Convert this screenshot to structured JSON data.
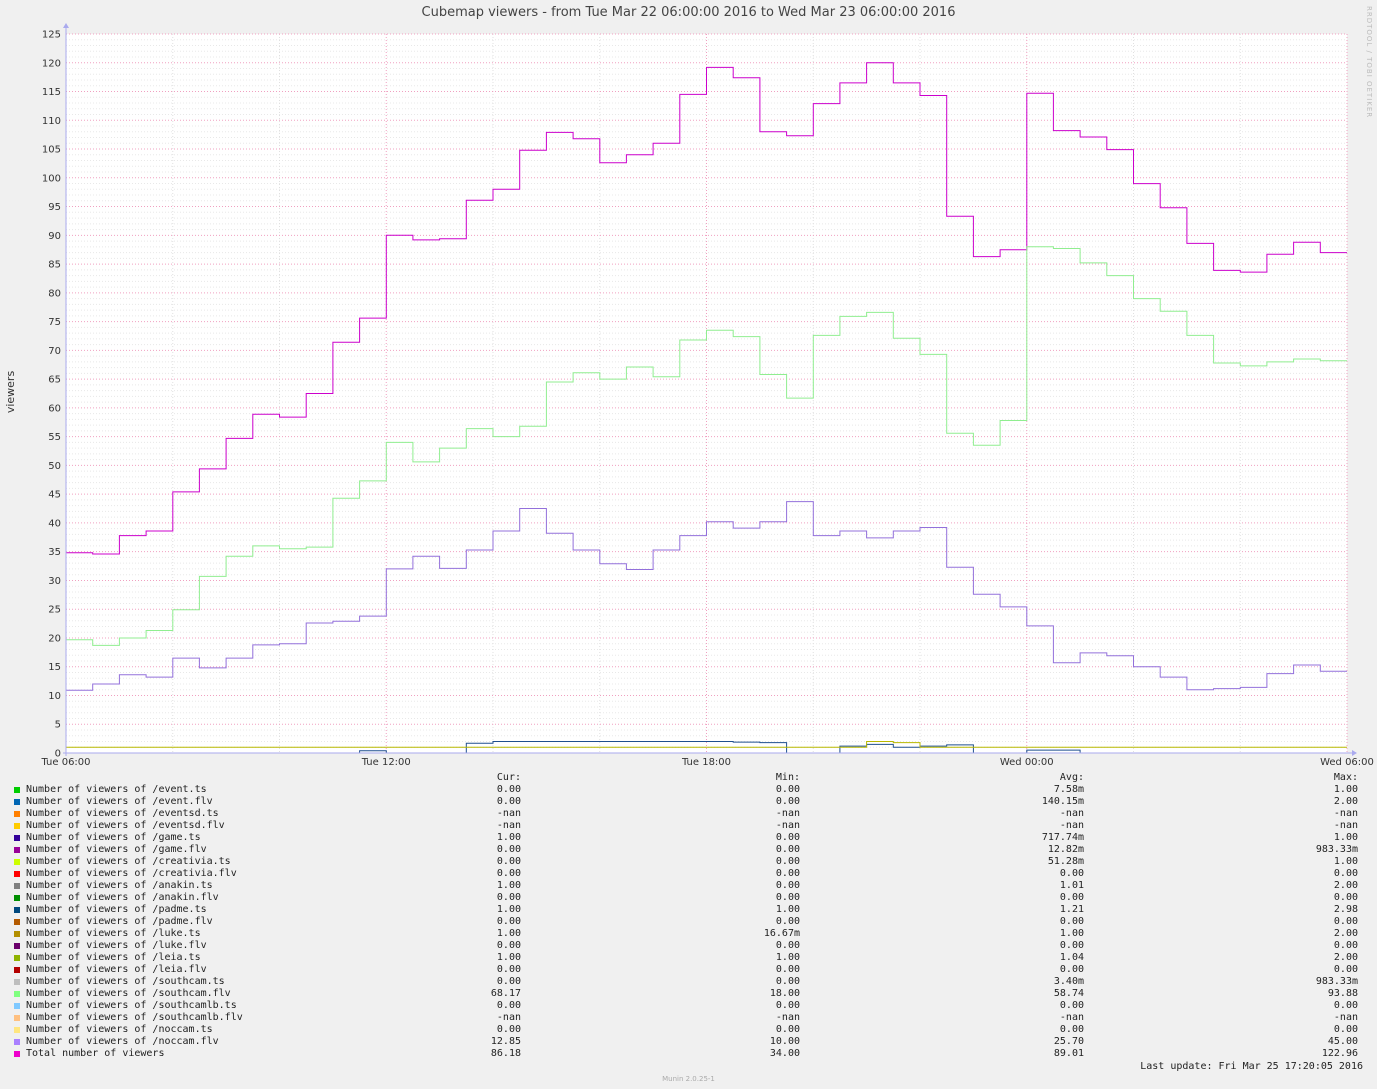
{
  "chart_data": {
    "type": "line",
    "title": "Cubemap viewers - from Tue Mar 22 06:00:00 2016 to Wed Mar 23 06:00:00 2016",
    "ylabel": "viewers",
    "xlabel": "",
    "ylim": [
      0,
      125
    ],
    "yticks": [
      "0",
      "5",
      "10",
      "15",
      "20",
      "25",
      "30",
      "35",
      "40",
      "45",
      "50",
      "55",
      "60",
      "65",
      "70",
      "75",
      "80",
      "85",
      "90",
      "95",
      "100",
      "105",
      "110",
      "115",
      "120",
      "125"
    ],
    "xlim_hours": [
      0,
      24
    ],
    "xticks": [
      {
        "hour": 0,
        "label": "Tue 06:00"
      },
      {
        "hour": 6,
        "label": "Tue 12:00"
      },
      {
        "hour": 12,
        "label": "Tue 18:00"
      },
      {
        "hour": 18,
        "label": "Wed 00:00"
      },
      {
        "hour": 24,
        "label": "Wed 06:00"
      }
    ],
    "grid": true,
    "step_hours": 0.5,
    "series": [
      {
        "name": "Total number of viewers",
        "color": "#cc00cc",
        "values": [
          34.8,
          34.6,
          37.8,
          38.6,
          45.4,
          49.4,
          54.7,
          58.9,
          58.4,
          62.5,
          71.4,
          75.6,
          90.0,
          89.2,
          89.4,
          96.1,
          98.0,
          104.8,
          107.9,
          106.8,
          102.6,
          104.0,
          106.0,
          114.5,
          119.2,
          117.4,
          108.0,
          107.3,
          112.9,
          116.5,
          120.0,
          116.5,
          114.3,
          93.3,
          86.3,
          87.5,
          114.7,
          108.2,
          107.1,
          104.9,
          99.0,
          94.8,
          88.6,
          83.9,
          83.6,
          86.7,
          88.8,
          87.0
        ]
      },
      {
        "name": "Number of viewers of /southcam.flv",
        "color": "#90ee90",
        "values": [
          19.7,
          18.7,
          20.0,
          21.3,
          24.9,
          30.7,
          34.2,
          36.0,
          35.5,
          35.8,
          44.3,
          47.3,
          54.0,
          50.6,
          53.0,
          56.4,
          55.0,
          56.8,
          64.5,
          66.1,
          65.0,
          67.1,
          65.4,
          71.8,
          73.5,
          72.4,
          65.8,
          61.7,
          72.6,
          75.9,
          76.6,
          72.1,
          69.3,
          55.6,
          53.5,
          57.8,
          88.0,
          87.7,
          85.2,
          83.0,
          79.0,
          76.8,
          72.6,
          67.8,
          67.3,
          68.0,
          68.5,
          68.2
        ]
      },
      {
        "name": "Number of viewers of /noccam.flv",
        "color": "#9370db",
        "values": [
          10.9,
          12.0,
          13.6,
          13.2,
          16.5,
          14.8,
          16.5,
          18.8,
          19.0,
          22.6,
          22.9,
          23.8,
          32.0,
          34.2,
          32.1,
          35.3,
          38.6,
          42.5,
          38.2,
          35.3,
          32.9,
          31.9,
          35.3,
          37.8,
          40.2,
          39.1,
          40.2,
          43.7,
          37.8,
          38.6,
          37.4,
          38.6,
          39.2,
          32.3,
          27.6,
          25.4,
          22.1,
          15.7,
          17.4,
          16.9,
          15.0,
          13.2,
          11.0,
          11.2,
          11.4,
          13.8,
          15.3,
          14.2
        ]
      },
      {
        "name": "Number of viewers of /padme.ts",
        "color": "#1f4f8f",
        "values": [
          0,
          0,
          0,
          0,
          0,
          0,
          0,
          0,
          0,
          0,
          0,
          0.4,
          0,
          0,
          0,
          1.7,
          2.0,
          2.0,
          2.0,
          2.0,
          2.0,
          2.0,
          2.0,
          2.0,
          2.0,
          1.9,
          1.8,
          0,
          0,
          1.2,
          1.5,
          1.0,
          1.2,
          1.4,
          0,
          0,
          0.5,
          0.5,
          0,
          0,
          0,
          0,
          0,
          0,
          0,
          0,
          0,
          0
        ]
      },
      {
        "name": "Number of viewers of /luke.ts",
        "color": "#b8b800",
        "values": [
          1,
          1,
          1,
          1,
          1,
          1,
          1,
          1,
          1,
          1,
          1,
          1,
          1,
          1,
          1,
          1,
          1,
          1,
          1,
          1,
          1,
          1,
          1,
          1,
          1,
          1,
          1,
          1,
          1,
          1,
          2.0,
          1.8,
          1,
          1,
          1,
          1,
          1,
          1,
          1,
          1,
          1,
          1,
          1,
          1,
          1,
          1,
          1,
          1
        ]
      }
    ]
  },
  "legend": {
    "headers": {
      "cur": "Cur:",
      "min": "Min:",
      "avg": "Avg:",
      "max": "Max:"
    },
    "rows": [
      {
        "color": "#00cc00",
        "name": "Number of viewers of /event.ts",
        "cur": "0.00",
        "min": "0.00",
        "avg": "7.58m",
        "max": "1.00"
      },
      {
        "color": "#0066b3",
        "name": "Number of viewers of /event.flv",
        "cur": "0.00",
        "min": "0.00",
        "avg": "140.15m",
        "max": "2.00"
      },
      {
        "color": "#ff8000",
        "name": "Number of viewers of /eventsd.ts",
        "cur": "-nan",
        "min": "-nan",
        "avg": "-nan",
        "max": "-nan"
      },
      {
        "color": "#ffcc00",
        "name": "Number of viewers of /eventsd.flv",
        "cur": "-nan",
        "min": "-nan",
        "avg": "-nan",
        "max": "-nan"
      },
      {
        "color": "#330099",
        "name": "Number of viewers of /game.ts",
        "cur": "1.00",
        "min": "0.00",
        "avg": "717.74m",
        "max": "1.00"
      },
      {
        "color": "#990099",
        "name": "Number of viewers of /game.flv",
        "cur": "0.00",
        "min": "0.00",
        "avg": "12.82m",
        "max": "983.33m"
      },
      {
        "color": "#ccff00",
        "name": "Number of viewers of /creativia.ts",
        "cur": "0.00",
        "min": "0.00",
        "avg": "51.28m",
        "max": "1.00"
      },
      {
        "color": "#ff0000",
        "name": "Number of viewers of /creativia.flv",
        "cur": "0.00",
        "min": "0.00",
        "avg": "0.00",
        "max": "0.00"
      },
      {
        "color": "#808080",
        "name": "Number of viewers of /anakin.ts",
        "cur": "1.00",
        "min": "0.00",
        "avg": "1.01",
        "max": "2.00"
      },
      {
        "color": "#008f00",
        "name": "Number of viewers of /anakin.flv",
        "cur": "0.00",
        "min": "0.00",
        "avg": "0.00",
        "max": "0.00"
      },
      {
        "color": "#00487d",
        "name": "Number of viewers of /padme.ts",
        "cur": "1.00",
        "min": "1.00",
        "avg": "1.21",
        "max": "2.98"
      },
      {
        "color": "#b35a00",
        "name": "Number of viewers of /padme.flv",
        "cur": "0.00",
        "min": "0.00",
        "avg": "0.00",
        "max": "0.00"
      },
      {
        "color": "#b38f00",
        "name": "Number of viewers of /luke.ts",
        "cur": "1.00",
        "min": "16.67m",
        "avg": "1.00",
        "max": "2.00"
      },
      {
        "color": "#6b006b",
        "name": "Number of viewers of /luke.flv",
        "cur": "0.00",
        "min": "0.00",
        "avg": "0.00",
        "max": "0.00"
      },
      {
        "color": "#8fb300",
        "name": "Number of viewers of /leia.ts",
        "cur": "1.00",
        "min": "1.00",
        "avg": "1.04",
        "max": "2.00"
      },
      {
        "color": "#b30000",
        "name": "Number of viewers of /leia.flv",
        "cur": "0.00",
        "min": "0.00",
        "avg": "0.00",
        "max": "0.00"
      },
      {
        "color": "#bebebe",
        "name": "Number of viewers of /southcam.ts",
        "cur": "0.00",
        "min": "0.00",
        "avg": "3.40m",
        "max": "983.33m"
      },
      {
        "color": "#80ff80",
        "name": "Number of viewers of /southcam.flv",
        "cur": "68.17",
        "min": "18.00",
        "avg": "58.74",
        "max": "93.88"
      },
      {
        "color": "#80c9ff",
        "name": "Number of viewers of /southcamlb.ts",
        "cur": "0.00",
        "min": "0.00",
        "avg": "0.00",
        "max": "0.00"
      },
      {
        "color": "#ffc080",
        "name": "Number of viewers of /southcamlb.flv",
        "cur": "-nan",
        "min": "-nan",
        "avg": "-nan",
        "max": "-nan"
      },
      {
        "color": "#ffe680",
        "name": "Number of viewers of /noccam.ts",
        "cur": "0.00",
        "min": "0.00",
        "avg": "0.00",
        "max": "0.00"
      },
      {
        "color": "#aa80ff",
        "name": "Number of viewers of /noccam.flv",
        "cur": "12.85",
        "min": "10.00",
        "avg": "25.70",
        "max": "45.00"
      },
      {
        "color": "#ee00cc",
        "name": "Total number of viewers",
        "cur": "86.18",
        "min": "34.00",
        "avg": "89.01",
        "max": "122.96"
      }
    ]
  },
  "last_update": "Last update: Fri Mar 25 17:20:05 2016",
  "watermark": "RRDTOOL / TOBI OETIKER",
  "footer": "Munin 2.0.25-1"
}
